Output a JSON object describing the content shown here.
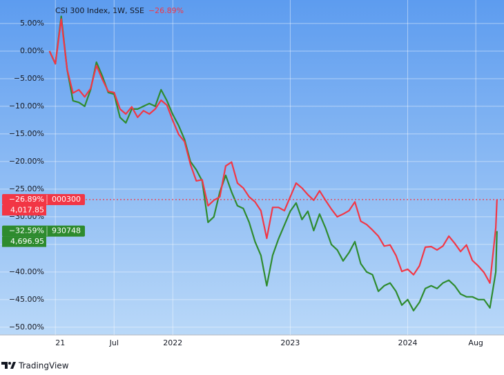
{
  "chart_data": {
    "type": "line",
    "title": "CSI 300 Index, 1W, SSE",
    "title_change": "−26.89%",
    "x": [
      2020.95,
      2021.0,
      2021.05,
      2021.1,
      2021.15,
      2021.2,
      2021.25,
      2021.3,
      2021.35,
      2021.4,
      2021.45,
      2021.5,
      2021.55,
      2021.6,
      2021.65,
      2021.7,
      2021.75,
      2021.8,
      2021.85,
      2021.9,
      2021.95,
      2022.0,
      2022.05,
      2022.1,
      2022.15,
      2022.2,
      2022.25,
      2022.3,
      2022.35,
      2022.4,
      2022.45,
      2022.5,
      2022.55,
      2022.6,
      2022.65,
      2022.7,
      2022.75,
      2022.8,
      2022.85,
      2022.9,
      2022.95,
      2023.0,
      2023.05,
      2023.1,
      2023.15,
      2023.2,
      2023.25,
      2023.3,
      2023.35,
      2023.4,
      2023.45,
      2023.5,
      2023.55,
      2023.6,
      2023.65,
      2023.7,
      2023.75,
      2023.8,
      2023.85,
      2023.9,
      2023.95,
      2024.0,
      2024.05,
      2024.1,
      2024.15,
      2024.2,
      2024.25,
      2024.3,
      2024.35,
      2024.4,
      2024.45,
      2024.5,
      2024.55,
      2024.6,
      2024.65,
      2024.7,
      2024.75,
      2024.76
    ],
    "series": [
      {
        "name": "000300",
        "color": "#f23645",
        "last_label": "−26.89%",
        "price": "4,017.85",
        "values": [
          0,
          -2.3,
          5.8,
          -3.3,
          -7.6,
          -7.0,
          -8.3,
          -6.8,
          -2.6,
          -5.1,
          -7.3,
          -7.5,
          -10.5,
          -11.4,
          -10.1,
          -12.0,
          -10.8,
          -11.4,
          -10.5,
          -8.9,
          -9.8,
          -12.6,
          -15.1,
          -16.4,
          -20.5,
          -23.5,
          -23.3,
          -28.0,
          -27.0,
          -26.4,
          -20.8,
          -20.1,
          -23.9,
          -24.8,
          -26.4,
          -27.3,
          -28.9,
          -33.9,
          -28.3,
          -28.3,
          -28.9,
          -26.4,
          -23.9,
          -24.8,
          -26.0,
          -27.0,
          -25.3,
          -27.0,
          -28.6,
          -30.0,
          -29.5,
          -28.9,
          -27.3,
          -30.8,
          -31.4,
          -32.4,
          -33.5,
          -35.3,
          -35.1,
          -37.0,
          -39.9,
          -39.5,
          -40.5,
          -38.9,
          -35.5,
          -35.4,
          -36.0,
          -35.3,
          -33.5,
          -34.8,
          -36.3,
          -35.1,
          -37.9,
          -38.9,
          -40.1,
          -42.0,
          -32.0,
          -26.89
        ]
      },
      {
        "name": "930748",
        "color": "#2e8b2e",
        "last_label": "−32.59%",
        "price": "4,696.95",
        "values": [
          0,
          -2.3,
          6.3,
          -3.3,
          -9.0,
          -9.3,
          -10.0,
          -7.0,
          -2.0,
          -4.5,
          -7.5,
          -7.8,
          -12.0,
          -13.0,
          -10.5,
          -10.5,
          -10.0,
          -9.5,
          -10.0,
          -7.0,
          -9.0,
          -11.5,
          -13.5,
          -16.0,
          -20.0,
          -21.5,
          -23.5,
          -31.0,
          -30.0,
          -25.5,
          -22.5,
          -25.5,
          -28.0,
          -28.5,
          -31.0,
          -34.5,
          -37.0,
          -42.5,
          -37.0,
          -34.0,
          -31.5,
          -29.0,
          -27.5,
          -30.5,
          -29.0,
          -32.5,
          -29.5,
          -32.0,
          -35.0,
          -36.0,
          -38.0,
          -36.5,
          -34.5,
          -38.5,
          -40.0,
          -40.5,
          -43.5,
          -42.5,
          -42.0,
          -43.5,
          -46.0,
          -45.0,
          -47.0,
          -45.5,
          -43.0,
          -42.5,
          -43.0,
          -42.0,
          -41.5,
          -42.5,
          -44.0,
          -44.5,
          -44.5,
          -45.0,
          -45.0,
          -46.5,
          -40.0,
          -32.59
        ]
      }
    ],
    "xlim": [
      2020.94,
      2024.82
    ],
    "xticks": [
      {
        "value": 2021,
        "label": "21"
      },
      {
        "value": 2021.5,
        "label": "Jul"
      },
      2022,
      2023,
      2024,
      {
        "value": 2024.58,
        "label": "Aug"
      }
    ],
    "ylim": [
      -51.4,
      9.25
    ],
    "yticks": [
      {
        "value": 5,
        "label": "5.00%"
      },
      {
        "value": 0,
        "label": "0.00%"
      },
      {
        "value": -5,
        "label": "−5.00%"
      },
      {
        "value": -10,
        "label": "−10.00%"
      },
      {
        "value": -15,
        "label": "−15.00%"
      },
      {
        "value": -20,
        "label": "−20.00%"
      },
      {
        "value": -25,
        "label": "−25.00%"
      },
      {
        "value": -30,
        "label": "−30.00%"
      },
      {
        "value": -35,
        "label": "−35.00%"
      },
      {
        "value": -40,
        "label": "−40.00%"
      },
      {
        "value": -45,
        "label": "−45.00%"
      },
      {
        "value": -50,
        "label": "−50.00%"
      }
    ],
    "grid": true
  },
  "footer": {
    "brand": "TradingView"
  }
}
